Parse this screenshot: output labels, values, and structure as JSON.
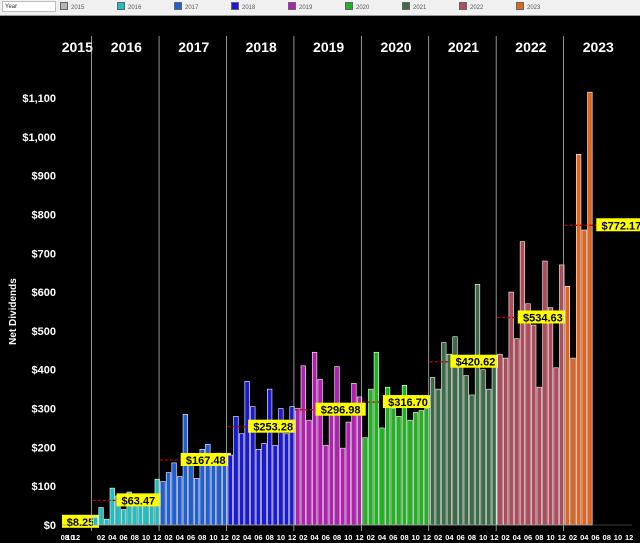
{
  "legend": {
    "field_label": "Year",
    "items": [
      {
        "label": "2015",
        "color": "#b4b4b4"
      },
      {
        "label": "2016",
        "color": "#1fbfbf"
      },
      {
        "label": "2017",
        "color": "#1f5fd6"
      },
      {
        "label": "2018",
        "color": "#1a1ad6"
      },
      {
        "label": "2019",
        "color": "#b31fb3"
      },
      {
        "label": "2020",
        "color": "#1fb31f"
      },
      {
        "label": "2021",
        "color": "#3c6b47"
      },
      {
        "label": "2022",
        "color": "#b04b5c"
      },
      {
        "label": "2023",
        "color": "#e0651e"
      }
    ]
  },
  "chart_data": {
    "type": "bar",
    "title": "",
    "xlabel": "",
    "ylabel": "Net Dividends",
    "ylim": [
      0,
      1150
    ],
    "yticks": [
      0,
      100,
      200,
      300,
      400,
      500,
      600,
      700,
      800,
      900,
      1000,
      1100
    ],
    "ytick_labels": [
      "$0",
      "$100",
      "$200",
      "$300",
      "$400",
      "$500",
      "$600",
      "$700",
      "$800",
      "$900",
      "$1,000",
      "$1,100"
    ],
    "average_line_color": "#c00000",
    "label_bg": "#ffff00",
    "years": [
      {
        "year": "2015",
        "color": "#b4b4b4",
        "months": [
          "08",
          "10",
          "12"
        ],
        "values": [
          2,
          9,
          14
        ],
        "avg": 8.25,
        "avg_label": "$8.25"
      },
      {
        "year": "2016",
        "color": "#1fbfbf",
        "months": [
          "01",
          "02",
          "03",
          "04",
          "05",
          "06",
          "07",
          "08",
          "09",
          "10",
          "11",
          "12"
        ],
        "tick_months": [
          "02",
          "04",
          "06",
          "08",
          "10",
          "12"
        ],
        "values": [
          20,
          45,
          15,
          95,
          75,
          40,
          85,
          60,
          80,
          55,
          60,
          118
        ],
        "avg": 63.47,
        "avg_label": "$63.47"
      },
      {
        "year": "2017",
        "color": "#1f5fd6",
        "months": [
          "01",
          "02",
          "03",
          "04",
          "05",
          "06",
          "07",
          "08",
          "09",
          "10",
          "11",
          "12"
        ],
        "tick_months": [
          "02",
          "04",
          "06",
          "08",
          "10",
          "12"
        ],
        "values": [
          112,
          135,
          160,
          125,
          285,
          180,
          120,
          195,
          208,
          165,
          185,
          178
        ],
        "avg": 167.48,
        "avg_label": "$167.48"
      },
      {
        "year": "2018",
        "color": "#1a1ad6",
        "months": [
          "01",
          "02",
          "03",
          "04",
          "05",
          "06",
          "07",
          "08",
          "09",
          "10",
          "11",
          "12"
        ],
        "tick_months": [
          "02",
          "04",
          "06",
          "08",
          "10",
          "12"
        ],
        "values": [
          180,
          280,
          235,
          370,
          305,
          195,
          210,
          350,
          205,
          300,
          235,
          305
        ],
        "avg": 253.28,
        "avg_label": "$253.28"
      },
      {
        "year": "2019",
        "color": "#b31fb3",
        "months": [
          "01",
          "02",
          "03",
          "04",
          "05",
          "06",
          "07",
          "08",
          "09",
          "10",
          "11",
          "12"
        ],
        "tick_months": [
          "02",
          "04",
          "06",
          "08",
          "10",
          "12"
        ],
        "values": [
          300,
          410,
          270,
          445,
          375,
          205,
          285,
          408,
          198,
          265,
          365,
          330
        ],
        "avg": 296.98,
        "avg_label": "$296.98"
      },
      {
        "year": "2020",
        "color": "#1fb31f",
        "months": [
          "01",
          "02",
          "03",
          "04",
          "05",
          "06",
          "07",
          "08",
          "09",
          "10",
          "11",
          "12"
        ],
        "tick_months": [
          "02",
          "04",
          "06",
          "08",
          "10",
          "12"
        ],
        "values": [
          225,
          350,
          445,
          250,
          355,
          300,
          280,
          360,
          270,
          290,
          295,
          300
        ],
        "avg": 316.7,
        "avg_label": "$316.70"
      },
      {
        "year": "2021",
        "color": "#3c6b47",
        "months": [
          "01",
          "02",
          "03",
          "04",
          "05",
          "06",
          "07",
          "08",
          "09",
          "10",
          "11",
          "12"
        ],
        "tick_months": [
          "02",
          "04",
          "06",
          "08",
          "10",
          "12"
        ],
        "values": [
          380,
          350,
          470,
          440,
          485,
          410,
          385,
          335,
          620,
          400,
          350,
          425
        ],
        "avg": 420.62,
        "avg_label": "$420.62"
      },
      {
        "year": "2022",
        "color": "#b04b5c",
        "months": [
          "01",
          "02",
          "03",
          "04",
          "05",
          "06",
          "07",
          "08",
          "09",
          "10",
          "11",
          "12"
        ],
        "tick_months": [
          "02",
          "04",
          "06",
          "08",
          "10",
          "12"
        ],
        "values": [
          440,
          430,
          600,
          480,
          730,
          570,
          515,
          355,
          680,
          560,
          405,
          670
        ],
        "avg": 534.63,
        "avg_label": "$534.63"
      },
      {
        "year": "2023",
        "color": "#e0651e",
        "months": [
          "01",
          "02",
          "03",
          "04",
          "05",
          "06"
        ],
        "tick_months": [
          "02",
          "04",
          "06"
        ],
        "extra_ticks": [
          "08",
          "10",
          "12"
        ],
        "values": [
          615,
          430,
          955,
          760,
          1115,
          0
        ],
        "avg": 772.17,
        "avg_label": "$772.17"
      }
    ]
  }
}
